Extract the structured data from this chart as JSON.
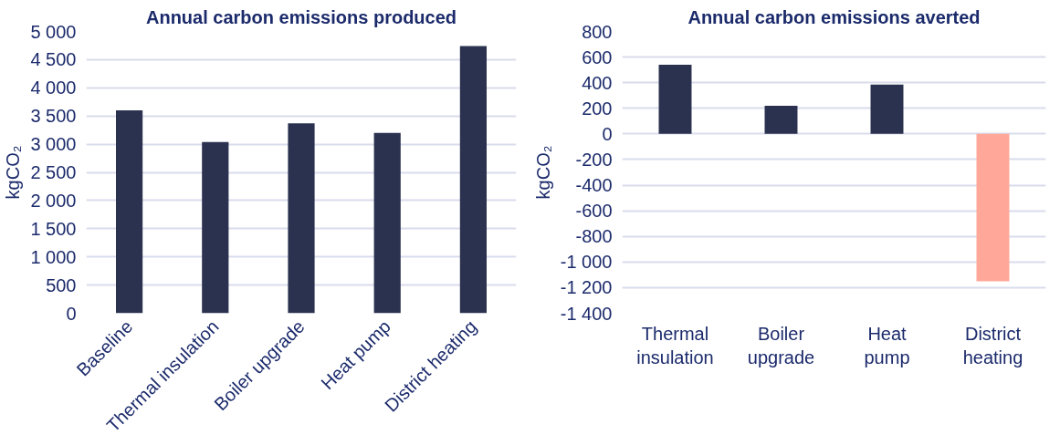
{
  "chart_data": [
    {
      "type": "bar",
      "title": "Annual carbon emissions produced",
      "ylabel": "kgCO₂",
      "categories": [
        "Baseline",
        "Thermal insulation",
        "Boiler upgrade",
        "Heat pump",
        "District heating"
      ],
      "values": [
        3600,
        3040,
        3370,
        3200,
        4740
      ],
      "color": "#2b3250",
      "ylim": [
        0,
        5000
      ],
      "yticks": [
        0,
        500,
        {
          "value": 1000,
          "label": "1 000"
        },
        {
          "value": 1500,
          "label": "1 500"
        },
        {
          "value": 2000,
          "label": "2 000"
        },
        {
          "value": 2500,
          "label": "2 500"
        },
        {
          "value": 3000,
          "label": "3 000"
        },
        {
          "value": 3500,
          "label": "3 500"
        },
        {
          "value": 4000,
          "label": "4 000"
        },
        {
          "value": 4500,
          "label": "4 500"
        },
        {
          "value": 5000,
          "label": "5 000"
        }
      ],
      "grid": "y"
    },
    {
      "type": "bar",
      "title": "Annual carbon emissions averted",
      "ylabel": "kgCO₂",
      "categories": [
        "Thermal\ninsulation",
        "Boiler\nupgrade",
        "Heat\npump",
        "District\nheating"
      ],
      "values": [
        540,
        220,
        385,
        -1150
      ],
      "colors": [
        "#2b3250",
        "#2b3250",
        "#2b3250",
        "#ffa899"
      ],
      "ylim": [
        -1400,
        800
      ],
      "yticks": [
        {
          "value": -1400,
          "label": "-1 400"
        },
        {
          "value": -1200,
          "label": "-1 200"
        },
        {
          "value": -1000,
          "label": "-1 000"
        },
        -800,
        -600,
        -400,
        -200,
        0,
        200,
        400,
        600,
        800
      ],
      "grid": "y"
    }
  ]
}
